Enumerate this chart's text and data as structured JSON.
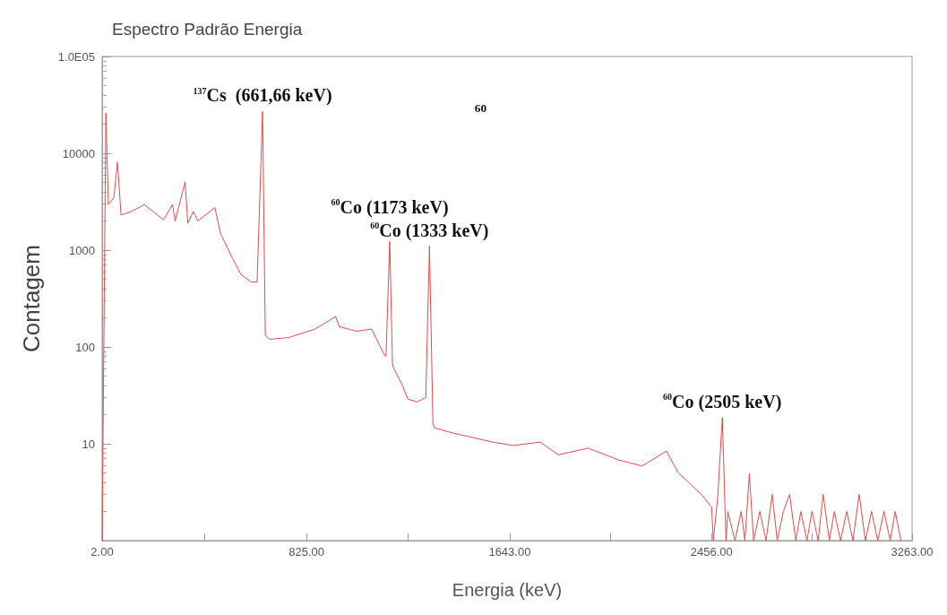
{
  "chart_data": {
    "type": "line",
    "title": "Espectro Padrão Energia",
    "xlabel": "Energia (keV)",
    "ylabel": "Contagem",
    "xlim": [
      2,
      3263
    ],
    "xticks": [
      {
        "value": 2,
        "label": "2.00"
      },
      {
        "value": 413.5,
        "label": null
      },
      {
        "value": 825,
        "label": "825.00"
      },
      {
        "value": 1234,
        "label": null
      },
      {
        "value": 1643,
        "label": "1643.00"
      },
      {
        "value": 2049.5,
        "label": null
      },
      {
        "value": 2456,
        "label": "2456.00"
      },
      {
        "value": 2859.5,
        "label": null
      },
      {
        "value": 3263,
        "label": "3263.00"
      }
    ],
    "ylim": [
      1,
      100000
    ],
    "log": "y",
    "yticks": [
      {
        "value": 1,
        "label": null
      },
      10,
      100,
      1000,
      10000,
      {
        "value": 100000,
        "label": "1.0E05"
      }
    ],
    "grid": false,
    "marker": "none",
    "line_style": "solid",
    "annotations": [
      {
        "text": "$^{137}$Cs  (661,66 keV)",
        "x": 648,
        "y": 27000
      },
      {
        "text": "$^{60}$Co (1173 keV)",
        "x": 1160,
        "y": 1230
      },
      {
        "text": "$^{60}$Co (1333 keV)",
        "x": 1320,
        "y": 1100
      },
      {
        "text": "$^{60}$Co (2505 keV)",
        "x": 2499,
        "y": 18.6
      },
      "$^{60}$"
    ],
    "series": [
      {
        "color": "#e8494a",
        "x": [
          2,
          17,
          27,
          49,
          64,
          78,
          118,
          173,
          249,
          285,
          296,
          336,
          347,
          369,
          387,
          456,
          478,
          521,
          561,
          601,
          626,
          648,
          659,
          677,
          753,
          859,
          942,
          957,
          1026,
          1087,
          1138,
          1145,
          1160,
          1171,
          1175,
          1211,
          1233,
          1269,
          1305,
          1320,
          1334,
          1341,
          1414,
          1476,
          1574,
          1657,
          1766,
          1839,
          1959,
          2082,
          2176,
          2274,
          2322,
          2372,
          2420,
          2456,
          2463,
          2481,
          2499,
          2514,
          2521,
          2550,
          2575,
          2590,
          2608,
          2625,
          2650,
          2675,
          2700,
          2720,
          2745,
          2770,
          2795,
          2815,
          2840,
          2860,
          2885,
          2905,
          2930,
          2950,
          2975,
          3000,
          3025,
          3050,
          3075,
          3100,
          3125,
          3150,
          3175,
          3195,
          3218
        ],
        "values": [
          1,
          26000,
          2950,
          3450,
          8100,
          2300,
          2500,
          2950,
          2050,
          2950,
          2000,
          5050,
          1900,
          2500,
          2000,
          2750,
          1500,
          880,
          560,
          470,
          470,
          27000,
          132,
          120,
          125,
          153,
          206,
          162,
          145,
          153,
          83,
          80,
          1230,
          67,
          61,
          40,
          29,
          27,
          30,
          1100,
          16,
          14.6,
          12.9,
          11.9,
          10.4,
          9.6,
          10.4,
          7.7,
          9,
          6.8,
          5.9,
          8.4,
          5,
          3.8,
          2.9,
          2.2,
          1,
          2.9,
          18.6,
          1,
          2,
          1,
          2,
          1,
          4.9,
          1,
          2,
          1,
          3,
          1,
          2,
          3,
          1,
          2,
          1,
          2,
          1,
          3,
          1,
          2,
          1,
          2,
          1,
          3,
          1,
          2,
          1,
          2,
          1,
          2,
          1
        ]
      }
    ]
  }
}
